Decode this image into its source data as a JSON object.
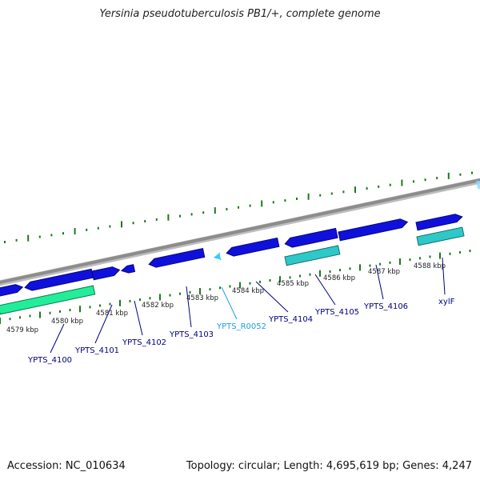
{
  "title": "Yersinia pseudotuberculosis PB1/+, complete genome",
  "footer": {
    "accession": "Accession: NC_010634",
    "stats": "Topology: circular; Length: 4,695,619 bp; Genes: 4,247"
  },
  "colors": {
    "backbone": "#8c8c8c",
    "tick": "#1a7a1a",
    "cds": "#1010dd",
    "cds_dark": "#08087a",
    "rrna": "#2ec8c8",
    "rrna_dark": "#117070",
    "trna": "#33ccff",
    "label_cds": "#000080",
    "label_rna": "#1aa0e0",
    "green_feature": "#22ee99",
    "green_feature_dark": "#0b7a50"
  },
  "scale_labels": [
    "4579 kbp",
    "4580 kbp",
    "4581 kbp",
    "4582 kbp",
    "4583 kbp",
    "4584 kbp",
    "4585 kbp",
    "4586 kbp",
    "4587 kbp",
    "4588 kbp"
  ],
  "gene_labels": [
    {
      "text": "YPTS_4100",
      "kind": "cds"
    },
    {
      "text": "YPTS_4101",
      "kind": "cds"
    },
    {
      "text": "YPTS_4102",
      "kind": "cds"
    },
    {
      "text": "YPTS_4103",
      "kind": "cds"
    },
    {
      "text": "YPTS_R0052",
      "kind": "rna"
    },
    {
      "text": "YPTS_4104",
      "kind": "cds"
    },
    {
      "text": "YPTS_4105",
      "kind": "cds"
    },
    {
      "text": "YPTS_4106",
      "kind": "cds"
    },
    {
      "text": "xylF",
      "kind": "cds"
    }
  ]
}
